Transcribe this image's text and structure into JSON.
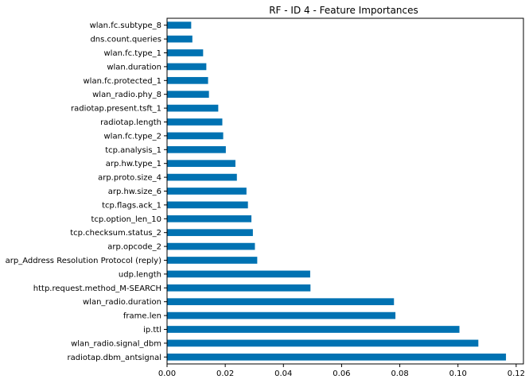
{
  "chart_data": {
    "type": "bar",
    "orientation": "horizontal",
    "title": "RF - ID 4 - Feature Importances",
    "xlabel": "",
    "ylabel": "",
    "xlim": [
      0,
      0.1225
    ],
    "xticks": [
      0.0,
      0.02,
      0.04,
      0.06,
      0.08,
      0.1,
      0.12
    ],
    "xtick_labels": [
      "0.00",
      "0.02",
      "0.04",
      "0.06",
      "0.08",
      "0.10",
      "0.12"
    ],
    "grid": false,
    "legend": "none",
    "bar_color": "#0072b2",
    "categories": [
      "radiotap.dbm_antsignal",
      "wlan_radio.signal_dbm",
      "ip.ttl",
      "frame.len",
      "wlan_radio.duration",
      "http.request.method_M-SEARCH",
      "udp.length",
      "arp_Address Resolution Protocol (reply)",
      "arp.opcode_2",
      "tcp.checksum.status_2",
      "tcp.option_len_10",
      "tcp.flags.ack_1",
      "arp.hw.size_6",
      "arp.proto.size_4",
      "arp.hw.type_1",
      "tcp.analysis_1",
      "wlan.fc.type_2",
      "radiotap.length",
      "radiotap.present.tsft_1",
      "wlan_radio.phy_8",
      "wlan.fc.protected_1",
      "wlan.duration",
      "wlan.fc.type_1",
      "dns.count.queries",
      "wlan.fc.subtype_8"
    ],
    "values": [
      0.1165,
      0.107,
      0.1005,
      0.0785,
      0.078,
      0.0493,
      0.0492,
      0.031,
      0.0302,
      0.0295,
      0.029,
      0.0278,
      0.0273,
      0.024,
      0.0235,
      0.0202,
      0.0193,
      0.019,
      0.0176,
      0.0144,
      0.0141,
      0.0135,
      0.0124,
      0.0087,
      0.0083
    ]
  }
}
